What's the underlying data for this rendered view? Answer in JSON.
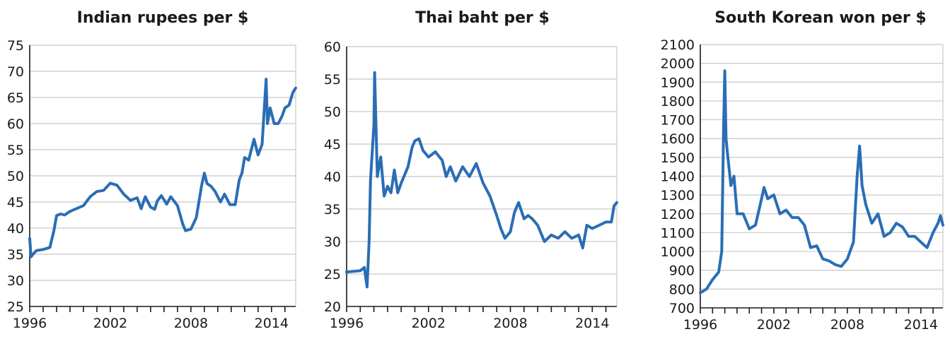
{
  "colors": {
    "series": "#2a6db5",
    "grid": "#c8c8c8",
    "text": "#1a1a1a"
  },
  "chart_data": [
    {
      "type": "line",
      "title": "Indian rupees per $",
      "ylim": [
        25,
        75
      ],
      "yticks": [
        25,
        30,
        35,
        40,
        45,
        50,
        55,
        60,
        65,
        70,
        75
      ],
      "xlim": [
        1996,
        2015.8
      ],
      "xticks": [
        1996,
        2002,
        2008,
        2014
      ],
      "grid": true,
      "series": [
        {
          "x": [
            1996.0,
            1996.1,
            1996.25,
            1996.5,
            1997.0,
            1997.5,
            1997.8,
            1998.0,
            1998.3,
            1998.6,
            1999.0,
            2000.0,
            2000.5,
            2001.0,
            2001.5,
            2002.0,
            2002.5,
            2003.0,
            2003.5,
            2004.0,
            2004.3,
            2004.6,
            2005.0,
            2005.3,
            2005.5,
            2005.8,
            2006.2,
            2006.5,
            2007.0,
            2007.4,
            2007.6,
            2008.0,
            2008.4,
            2008.8,
            2009.0,
            2009.2,
            2009.5,
            2009.8,
            2010.2,
            2010.5,
            2010.9,
            2011.3,
            2011.6,
            2011.8,
            2012.0,
            2012.3,
            2012.7,
            2013.0,
            2013.3,
            2013.6,
            2013.7,
            2013.9,
            2014.2,
            2014.5,
            2014.8,
            2015.0,
            2015.3,
            2015.6,
            2015.8
          ],
          "y": [
            38,
            34.5,
            35,
            35.7,
            35.9,
            36.3,
            39.5,
            42.4,
            42.7,
            42.5,
            43.2,
            44.3,
            46,
            47,
            47.2,
            48.6,
            48.2,
            46.5,
            45.3,
            45.8,
            43.7,
            46,
            44,
            43.6,
            45.2,
            46.2,
            44.6,
            46,
            44.3,
            40.7,
            39.5,
            39.8,
            42,
            48.2,
            50.5,
            48.5,
            48,
            47,
            45,
            46.5,
            44.5,
            44.5,
            49.2,
            50.5,
            53.5,
            53,
            57,
            54,
            56,
            68.5,
            60,
            63,
            60,
            60,
            61.5,
            63,
            63.5,
            66,
            66.8
          ]
        }
      ]
    },
    {
      "type": "line",
      "title": "Thai baht per $",
      "ylim": [
        20,
        60
      ],
      "yticks": [
        20,
        25,
        30,
        35,
        40,
        45,
        50,
        55,
        60
      ],
      "xlim": [
        1996,
        2015.8
      ],
      "xticks": [
        1996,
        2002,
        2008,
        2014
      ],
      "grid": true,
      "series": [
        {
          "x": [
            1996.0,
            1996.5,
            1997.0,
            1997.3,
            1997.5,
            1997.65,
            1997.75,
            1998.0,
            1998.05,
            1998.25,
            1998.5,
            1998.75,
            1999.0,
            1999.25,
            1999.5,
            1999.75,
            2000.0,
            2000.5,
            2000.8,
            2001.0,
            2001.3,
            2001.6,
            2002.0,
            2002.5,
            2003.0,
            2003.3,
            2003.6,
            2004.0,
            2004.5,
            2005.0,
            2005.5,
            2006.0,
            2006.5,
            2007.0,
            2007.3,
            2007.6,
            2008.0,
            2008.3,
            2008.6,
            2009.0,
            2009.3,
            2009.6,
            2010.0,
            2010.5,
            2011.0,
            2011.5,
            2012.0,
            2012.5,
            2013.0,
            2013.3,
            2013.6,
            2014.0,
            2014.5,
            2015.0,
            2015.4,
            2015.6,
            2015.8
          ],
          "y": [
            25.3,
            25.4,
            25.5,
            26,
            23,
            30,
            39.5,
            48,
            56,
            40,
            43,
            37,
            38.5,
            37.5,
            41,
            37.5,
            39,
            41.5,
            44.5,
            45.5,
            45.8,
            44,
            43,
            43.8,
            42.5,
            40,
            41.5,
            39.3,
            41.5,
            40,
            42,
            39,
            37,
            34,
            32,
            30.5,
            31.5,
            34.5,
            36,
            33.5,
            34,
            33.5,
            32.5,
            30,
            31,
            30.5,
            31.5,
            30.5,
            31,
            29,
            32.5,
            32,
            32.5,
            33,
            33,
            35.5,
            36
          ]
        }
      ]
    },
    {
      "type": "line",
      "title": "South Korean won per $",
      "ylim": [
        700,
        2100
      ],
      "yticks": [
        700,
        800,
        900,
        1000,
        1100,
        1200,
        1300,
        1400,
        1500,
        1600,
        1700,
        1800,
        1900,
        2000,
        2100
      ],
      "xlim": [
        1996,
        2015.8
      ],
      "xticks": [
        1996,
        2002,
        2008,
        2014
      ],
      "grid": true,
      "series": [
        {
          "x": [
            1996.0,
            1996.5,
            1997.0,
            1997.5,
            1997.75,
            1997.9,
            1998.0,
            1998.1,
            1998.25,
            1998.5,
            1998.75,
            1999.0,
            1999.5,
            2000.0,
            2000.5,
            2001.0,
            2001.2,
            2001.5,
            2002.0,
            2002.5,
            2003.0,
            2003.5,
            2004.0,
            2004.5,
            2005.0,
            2005.5,
            2006.0,
            2006.5,
            2007.0,
            2007.5,
            2008.0,
            2008.5,
            2008.8,
            2009.0,
            2009.2,
            2009.5,
            2010.0,
            2010.5,
            2011.0,
            2011.5,
            2012.0,
            2012.5,
            2013.0,
            2013.5,
            2014.0,
            2014.5,
            2015.0,
            2015.4,
            2015.6,
            2015.8
          ],
          "y": [
            780,
            800,
            850,
            890,
            1000,
            1650,
            1960,
            1600,
            1500,
            1350,
            1400,
            1200,
            1200,
            1120,
            1140,
            1280,
            1340,
            1280,
            1300,
            1200,
            1220,
            1180,
            1180,
            1140,
            1020,
            1030,
            960,
            950,
            930,
            920,
            960,
            1050,
            1400,
            1560,
            1350,
            1250,
            1150,
            1200,
            1080,
            1100,
            1150,
            1130,
            1080,
            1080,
            1050,
            1020,
            1100,
            1150,
            1190,
            1140
          ]
        }
      ]
    }
  ]
}
